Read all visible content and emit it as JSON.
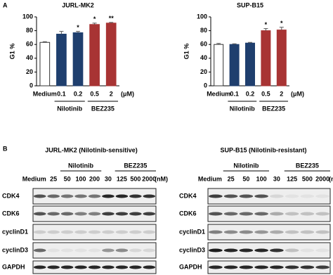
{
  "panel_labels": [
    "A",
    "B"
  ],
  "chart_data": [
    {
      "type": "bar",
      "title": "JURL-MK2",
      "y_label": "G1 %",
      "x_unit": "(μM)",
      "categories": [
        "Medium",
        "0.1",
        "0.2",
        "0.5",
        "2"
      ],
      "values": [
        63,
        75,
        77,
        89,
        91
      ],
      "errors": [
        1,
        4,
        2,
        2,
        1
      ],
      "colors": [
        "#ffffff",
        "#1f3f6e",
        "#1f3f6e",
        "#a83434",
        "#a83434"
      ],
      "annotations": [
        null,
        null,
        "*",
        "*",
        "**"
      ],
      "groups": [
        {
          "name": "Nilotinib",
          "span": [
            1,
            2
          ]
        },
        {
          "name": "BEZ235",
          "span": [
            3,
            4
          ]
        }
      ],
      "ylim": [
        0,
        100
      ],
      "yticks": [
        0,
        20,
        40,
        60,
        80,
        100
      ]
    },
    {
      "type": "bar",
      "title": "SUP-B15",
      "y_label": "G1 %",
      "x_unit": "(μM)",
      "categories": [
        "Medium",
        "0.1",
        "0.2",
        "0.5",
        "2"
      ],
      "values": [
        60,
        60,
        62,
        80,
        81
      ],
      "errors": [
        1.5,
        1,
        1,
        3,
        4
      ],
      "colors": [
        "#ffffff",
        "#1f3f6e",
        "#1f3f6e",
        "#a83434",
        "#a83434"
      ],
      "annotations": [
        null,
        null,
        null,
        "*",
        "*"
      ],
      "groups": [
        {
          "name": "Nilotinib",
          "span": [
            1,
            2
          ]
        },
        {
          "name": "BEZ235",
          "span": [
            3,
            4
          ]
        }
      ],
      "ylim": [
        0,
        100
      ],
      "yticks": [
        0,
        20,
        40,
        60,
        80,
        100
      ]
    }
  ],
  "blots": [
    {
      "title": "JURL-MK2 (Nilotinib-sensitive)",
      "unit": "(nM)",
      "lanes": [
        "Medium",
        "25",
        "50",
        "100",
        "200",
        "30",
        "125",
        "500",
        "2000"
      ],
      "groups": [
        {
          "name": "Nilotinib",
          "span": [
            2,
            4
          ]
        },
        {
          "name": "BEZ235",
          "span": [
            6,
            8
          ]
        }
      ],
      "rows": [
        "CDK4",
        "CDK6",
        "cyclinD1",
        "cyclinD3",
        "GAPDH"
      ]
    },
    {
      "title": "SUP-B15 (Nilotinib-resistant)",
      "unit": "(nM)",
      "lanes": [
        "Medium",
        "25",
        "50",
        "100",
        "30",
        "125",
        "500",
        "2000"
      ],
      "groups": [
        {
          "name": "Nilotinib",
          "span": [
            1,
            3
          ]
        },
        {
          "name": "BEZ235",
          "span": [
            5,
            7
          ]
        }
      ],
      "rows": [
        "CDK4",
        "CDK6",
        "cyclinD1",
        "cyclinD3",
        "GAPDH"
      ]
    }
  ]
}
